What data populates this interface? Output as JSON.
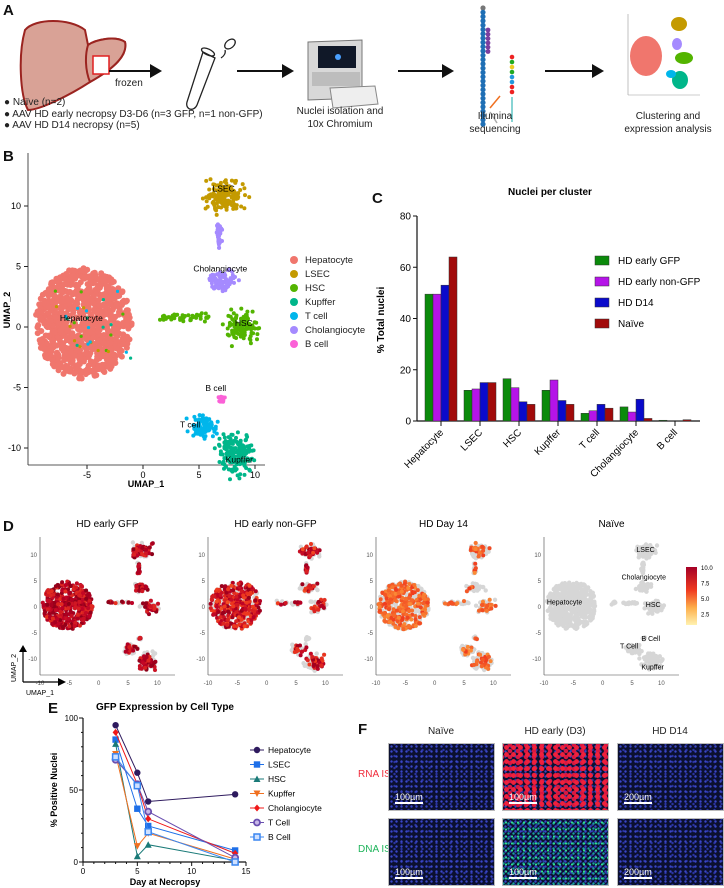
{
  "panels": {
    "a": "A",
    "b": "B",
    "c": "C",
    "d": "D",
    "e": "E",
    "f": "F"
  },
  "panel_a": {
    "frozen": "frozen",
    "groups": [
      "Naïve (n=2)",
      "AAV HD early necropsy D3-D6 (n=3 GFP, n=1 non-GFP)",
      "AAV HD D14 necropsy (n=5)"
    ],
    "step_nuclei": [
      "Nuclei isolation and",
      "10x Chromium"
    ],
    "step_seq": [
      "Illumina",
      "sequencing"
    ],
    "step_cluster": [
      "Clustering and",
      "expression analysis"
    ]
  },
  "panel_b": {
    "xlabel": "UMAP_1",
    "ylabel": "UMAP_2",
    "xticks": [
      "-5",
      "0",
      "5",
      "10"
    ],
    "yticks": [
      "10",
      "5",
      "0",
      "-5",
      "-10"
    ],
    "clusters": [
      {
        "name": "Hepatocyte",
        "color": "#F0766D"
      },
      {
        "name": "LSEC",
        "color": "#C49A00"
      },
      {
        "name": "HSC",
        "color": "#53B400"
      },
      {
        "name": "Kupffer",
        "color": "#00B68A"
      },
      {
        "name": "T cell",
        "color": "#00B6EB"
      },
      {
        "name": "Cholangiocyte",
        "color": "#A58AFF"
      },
      {
        "name": "B cell",
        "color": "#FB61D7"
      }
    ]
  },
  "panel_d": {
    "titles": [
      "HD early GFP",
      "HD early non-GFP",
      "HD Day 14",
      "Naïve"
    ],
    "xticks": [
      "-10",
      "-5",
      "0",
      "5",
      "10"
    ],
    "yticks": [
      "10",
      "5",
      "0",
      "-5",
      "-10"
    ],
    "cluster_labels": [
      "LSEC",
      "Cholangiocyte",
      "Hepatocyte",
      "HSC",
      "B Cell",
      "T Cell",
      "Kupffer"
    ],
    "colorbar_ticks": [
      "10.0",
      "7.5",
      "5.0",
      "2.5"
    ],
    "axis_x": "UMAP_1",
    "axis_y": "UMAP_2",
    "expression_level": [
      0.85,
      0.6,
      0.4,
      0.0
    ]
  },
  "chart_data": [
    {
      "type": "bar",
      "title": "Nuclei per cluster",
      "xlabel": "",
      "ylabel": "% Total nuclei",
      "ylim": [
        0,
        80
      ],
      "yticks": [
        "0",
        "20",
        "40",
        "60",
        "80"
      ],
      "categories": [
        "Hepatocyte",
        "LSEC",
        "HSC",
        "Kupffer",
        "T cell",
        "Cholangiocyte",
        "B cell"
      ],
      "legend": "right",
      "series": [
        {
          "name": "HD early GFP",
          "color": "#0B8A0B",
          "values": [
            49.5,
            12,
            16.5,
            12,
            3,
            5.5,
            0.3
          ]
        },
        {
          "name": "HD early non-GFP",
          "color": "#B514E8",
          "values": [
            49.5,
            12.5,
            13,
            16,
            4,
            3.5,
            0.1
          ]
        },
        {
          "name": "HD D14",
          "color": "#0A0ACB",
          "values": [
            53,
            15,
            7.5,
            8,
            6.5,
            8.5,
            0.1
          ]
        },
        {
          "name": "Naïve",
          "color": "#A10A0A",
          "values": [
            64,
            15,
            6.5,
            6.5,
            5,
            1,
            0.5
          ]
        }
      ]
    },
    {
      "type": "line",
      "title": "GFP Expression by Cell Type",
      "xlabel": "Day at Necropsy",
      "ylabel": "% Positive Nuclei",
      "xlim": [
        0,
        15
      ],
      "ylim": [
        0,
        100
      ],
      "xticks": [
        "0",
        "5",
        "10",
        "15"
      ],
      "yticks": [
        "0",
        "50",
        "100"
      ],
      "x": [
        3,
        5,
        6,
        14
      ],
      "legend": "right",
      "series": [
        {
          "name": "Hepatocyte",
          "color": "#2E1A5E",
          "marker": "circle",
          "values": [
            95,
            62,
            42,
            47
          ]
        },
        {
          "name": "LSEC",
          "color": "#1E6FE8",
          "marker": "square",
          "values": [
            85,
            37,
            25,
            8
          ]
        },
        {
          "name": "HSC",
          "color": "#1A7A78",
          "marker": "triangle",
          "values": [
            82,
            4,
            12,
            1
          ]
        },
        {
          "name": "Kupffer",
          "color": "#F07020",
          "marker": "triangle-down",
          "values": [
            75,
            11,
            20,
            2
          ]
        },
        {
          "name": "Cholangiocyte",
          "color": "#F01818",
          "marker": "diamond",
          "values": [
            90,
            54,
            30,
            6
          ]
        },
        {
          "name": "T Cell",
          "color": "#6A4FB0",
          "marker": "ring",
          "values": [
            71,
            54,
            35,
            3
          ]
        },
        {
          "name": "B Cell",
          "color": "#3A86F0",
          "marker": "open-square",
          "values": [
            73,
            53,
            21,
            0
          ]
        }
      ]
    }
  ],
  "panel_f": {
    "columns": [
      "Naïve",
      "HD early (D3)",
      "HD D14"
    ],
    "rows": [
      {
        "label": "RNA ISH",
        "color": "#F02A3A"
      },
      {
        "label": "DNA ISH",
        "color": "#1DB45A"
      }
    ],
    "scalebars": [
      [
        "100µm",
        "100µm",
        "200µm"
      ],
      [
        "100µm",
        "100µm",
        "200µm"
      ]
    ]
  }
}
